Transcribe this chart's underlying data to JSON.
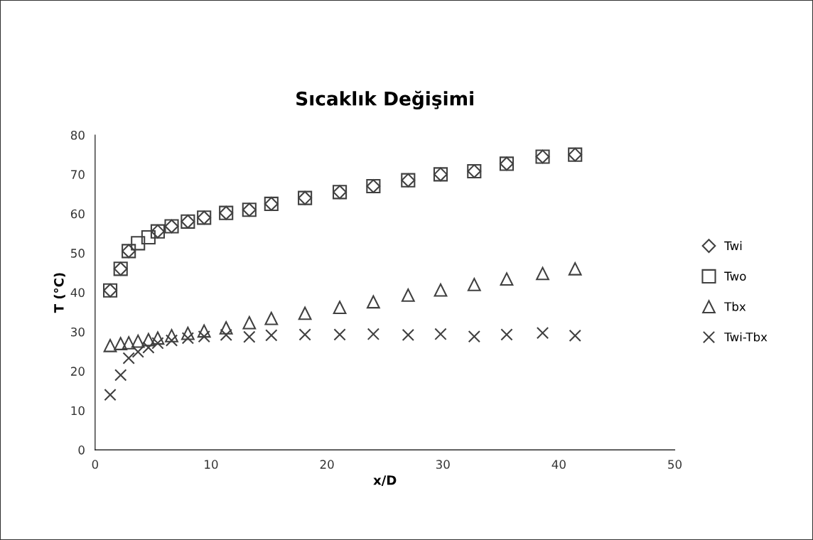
{
  "chart_data": {
    "type": "scatter",
    "title": "Sıcaklık Değişimi",
    "xlabel": "x/D",
    "ylabel": "T (°C)",
    "x": [
      1.3,
      2.2,
      2.9,
      3.7,
      4.6,
      5.4,
      6.6,
      8.0,
      9.4,
      11.3,
      13.3,
      15.2,
      18.1,
      21.1,
      24.0,
      27.0,
      29.8,
      32.7,
      35.5,
      38.6,
      41.4
    ],
    "series": [
      {
        "name": "Twi",
        "color": "#404040",
        "marker": "diamond",
        "values": [
          40.5,
          46,
          50.5,
          null,
          null,
          55.5,
          56.8,
          58,
          59,
          60.2,
          61,
          62.5,
          64,
          65.5,
          67,
          68.5,
          70,
          70.8,
          72.7,
          74.5,
          75
        ]
      },
      {
        "name": "Two",
        "color": "#404040",
        "marker": "square",
        "values": [
          40.5,
          46,
          50.5,
          52.5,
          54,
          55.5,
          56.8,
          58,
          59,
          60.2,
          61,
          62.5,
          64,
          65.5,
          67,
          68.5,
          70,
          70.8,
          72.7,
          74.5,
          75
        ]
      },
      {
        "name": "Tbx",
        "color": "#404040",
        "marker": "triangle",
        "values": [
          26.5,
          27,
          27.2,
          27.6,
          28,
          28.4,
          29,
          29.6,
          30.2,
          31,
          32.3,
          33.4,
          34.7,
          36.2,
          37.6,
          39.3,
          40.6,
          42,
          43.4,
          44.8,
          46
        ]
      },
      {
        "name": "Twi-Tbx",
        "color": "#404040",
        "marker": "cross",
        "values": [
          14,
          19,
          23.3,
          24.9,
          26,
          27.1,
          27.8,
          28.4,
          28.8,
          29.2,
          28.7,
          29.1,
          29.3,
          29.3,
          29.4,
          29.2,
          29.4,
          28.8,
          29.3,
          29.7,
          29
        ]
      }
    ],
    "xlim": [
      0,
      50
    ],
    "xticks": [
      0,
      10,
      20,
      30,
      40,
      50
    ],
    "ylim": [
      0,
      80
    ],
    "yticks": [
      0,
      10,
      20,
      30,
      40,
      50,
      60,
      70,
      80
    ],
    "grid": false,
    "legend": "right"
  }
}
